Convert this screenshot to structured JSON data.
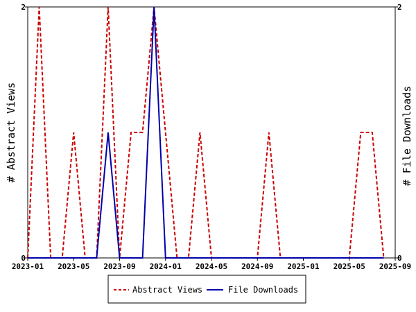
{
  "chart_data": {
    "type": "line",
    "title": "",
    "xlabel": "",
    "ylabel_left": "# Abstract Views",
    "ylabel_right": "# File Downloads",
    "x_ticks": [
      "2023-01",
      "2023-05",
      "2023-09",
      "2024-01",
      "2024-05",
      "2024-09",
      "2025-01",
      "2025-05",
      "2025-09"
    ],
    "xlim": [
      "2023-01",
      "2025-09"
    ],
    "y_left": {
      "ticks": [
        "0",
        "2"
      ],
      "ylim": [
        0,
        2
      ]
    },
    "y_right": {
      "ticks": [
        "0",
        "2"
      ],
      "ylim": [
        0,
        2
      ]
    },
    "grid": false,
    "legend_placement": "bottom",
    "series": [
      {
        "name": "Abstract Views",
        "axis": "left",
        "color": "#cc0000",
        "dash": true,
        "points": [
          [
            "2023-01",
            0
          ],
          [
            "2023-02",
            2
          ],
          [
            "2023-03",
            0
          ],
          [
            "2023-04",
            0
          ],
          [
            "2023-05",
            1
          ],
          [
            "2023-06",
            0
          ],
          [
            "2023-07",
            0
          ],
          [
            "2023-08",
            2
          ],
          [
            "2023-09",
            0
          ],
          [
            "2023-10",
            1
          ],
          [
            "2023-11",
            1
          ],
          [
            "2023-12",
            2
          ],
          [
            "2024-01",
            1
          ],
          [
            "2024-02",
            0
          ],
          [
            "2024-03",
            0
          ],
          [
            "2024-04",
            1
          ],
          [
            "2024-05",
            0
          ],
          [
            "2024-06",
            0
          ],
          [
            "2024-07",
            0
          ],
          [
            "2024-08",
            0
          ],
          [
            "2024-09",
            0
          ],
          [
            "2024-10",
            1
          ],
          [
            "2024-11",
            0
          ],
          [
            "2024-12",
            0
          ],
          [
            "2025-01",
            0
          ],
          [
            "2025-02",
            0
          ],
          [
            "2025-03",
            0
          ],
          [
            "2025-04",
            0
          ],
          [
            "2025-05",
            0
          ],
          [
            "2025-06",
            1
          ],
          [
            "2025-07",
            1
          ],
          [
            "2025-08",
            0
          ]
        ]
      },
      {
        "name": "File Downloads",
        "axis": "right",
        "color": "#0000aa",
        "dash": false,
        "points": [
          [
            "2023-01",
            0
          ],
          [
            "2023-02",
            0
          ],
          [
            "2023-03",
            0
          ],
          [
            "2023-04",
            0
          ],
          [
            "2023-05",
            0
          ],
          [
            "2023-06",
            0
          ],
          [
            "2023-07",
            0
          ],
          [
            "2023-08",
            1
          ],
          [
            "2023-09",
            0
          ],
          [
            "2023-10",
            0
          ],
          [
            "2023-11",
            0
          ],
          [
            "2023-12",
            2
          ],
          [
            "2024-01",
            0
          ],
          [
            "2024-02",
            0
          ],
          [
            "2024-03",
            0
          ],
          [
            "2024-04",
            0
          ],
          [
            "2024-05",
            0
          ],
          [
            "2024-06",
            0
          ],
          [
            "2024-07",
            0
          ],
          [
            "2024-08",
            0
          ],
          [
            "2024-09",
            0
          ],
          [
            "2024-10",
            0
          ],
          [
            "2024-11",
            0
          ],
          [
            "2024-12",
            0
          ],
          [
            "2025-01",
            0
          ],
          [
            "2025-02",
            0
          ],
          [
            "2025-03",
            0
          ],
          [
            "2025-04",
            0
          ],
          [
            "2025-05",
            0
          ],
          [
            "2025-06",
            0
          ],
          [
            "2025-07",
            0
          ],
          [
            "2025-08",
            0
          ]
        ]
      }
    ]
  }
}
